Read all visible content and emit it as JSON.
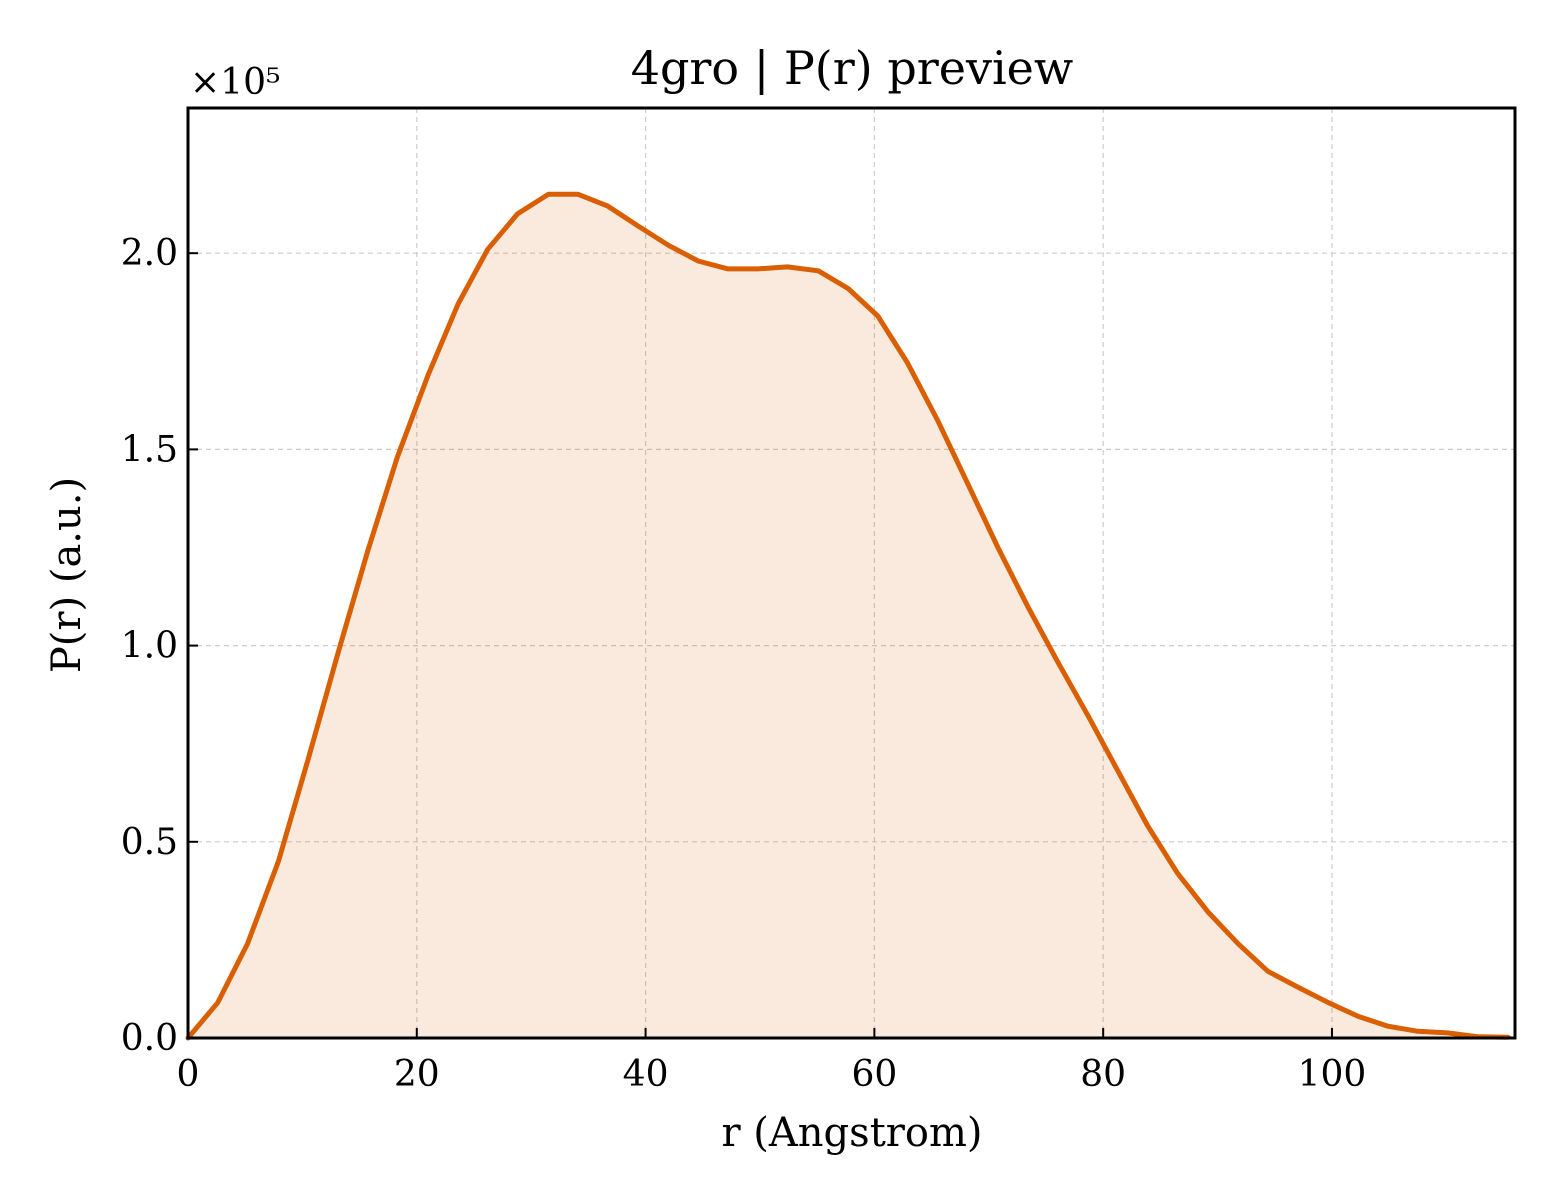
{
  "chart_data": {
    "type": "area",
    "title": "4gro | P(r) preview",
    "xlabel": "r (Angstrom)",
    "ylabel": "P(r) (a.u.)",
    "y_offset_label": "×10⁵",
    "xlim": [
      0,
      116
    ],
    "ylim": [
      0,
      2.37
    ],
    "y_scale_factor": 100000,
    "x_ticks": [
      0,
      20,
      40,
      60,
      80,
      100
    ],
    "x_tick_labels": [
      "0",
      "20",
      "40",
      "60",
      "80",
      "100"
    ],
    "y_ticks": [
      0.0,
      0.5,
      1.0,
      1.5,
      2.0
    ],
    "y_tick_labels": [
      "0.0",
      "0.5",
      "1.0",
      "1.5",
      "2.0"
    ],
    "grid": true,
    "color": "#d95f02",
    "series": [
      {
        "x": [
          0,
          2.6,
          5.2,
          7.9,
          10.5,
          13.1,
          15.7,
          18.3,
          21.0,
          23.6,
          26.2,
          28.8,
          31.5,
          34.1,
          36.7,
          39.3,
          42.0,
          44.6,
          47.2,
          49.8,
          52.4,
          55.1,
          57.7,
          60.3,
          62.9,
          65.6,
          68.2,
          70.8,
          73.4,
          76.0,
          78.7,
          81.3,
          83.9,
          86.5,
          89.2,
          91.8,
          94.4,
          97.0,
          99.7,
          102.3,
          104.9,
          107.5,
          110.1,
          112.8,
          115.4
        ],
        "y": [
          0.0,
          0.09,
          0.24,
          0.45,
          0.71,
          0.98,
          1.24,
          1.48,
          1.69,
          1.87,
          2.01,
          2.1,
          2.15,
          2.15,
          2.12,
          2.07,
          2.02,
          1.98,
          1.96,
          1.96,
          1.965,
          1.955,
          1.91,
          1.84,
          1.72,
          1.57,
          1.41,
          1.25,
          1.1,
          0.96,
          0.82,
          0.68,
          0.54,
          0.42,
          0.32,
          0.24,
          0.17,
          0.13,
          0.09,
          0.055,
          0.03,
          0.017,
          0.013,
          0.003,
          0.002
        ]
      }
    ]
  }
}
